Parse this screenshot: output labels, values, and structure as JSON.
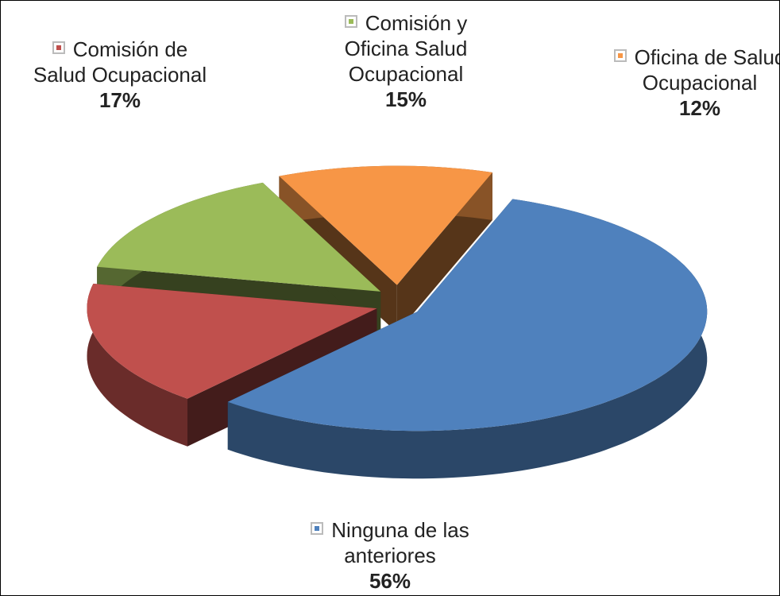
{
  "chart_data": {
    "type": "pie",
    "categories": [
      "Comisión y Oficina Salud Ocupacional",
      "Oficina de Salud Ocupacional",
      "Ninguna de las anteriores",
      "Comisión de Salud Ocupacional"
    ],
    "values": [
      15,
      12,
      56,
      17
    ],
    "value_labels": [
      "15%",
      "12%",
      "56%",
      "17%"
    ],
    "colors": [
      "#9bbb59",
      "#f79646",
      "#4f81bd",
      "#c0504d"
    ]
  }
}
